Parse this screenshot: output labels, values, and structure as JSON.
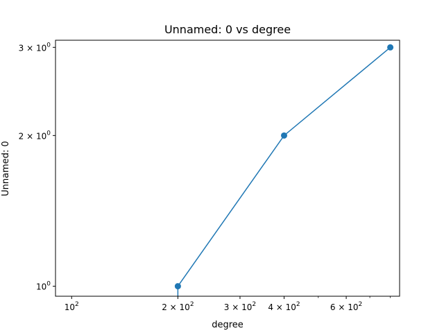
{
  "chart_data": {
    "type": "line",
    "title": "Unnamed: 0 vs degree",
    "xlabel": "degree",
    "ylabel": "Unnamed: 0",
    "xscale": "log",
    "yscale": "log",
    "xlim": [
      90,
      850
    ],
    "ylim": [
      0.955,
      3.1
    ],
    "grid": false,
    "legend": "none",
    "series": [
      {
        "x": [
          200,
          400,
          800
        ],
        "y": [
          1,
          2,
          3
        ],
        "color": "#1f77b4",
        "marker": "circle"
      }
    ],
    "x_ticks": [
      {
        "value": 100,
        "base": "10",
        "exp": "2"
      },
      {
        "value": 200,
        "base": "2 × 10",
        "exp": "2"
      },
      {
        "value": 300,
        "base": "3 × 10",
        "exp": "2"
      },
      {
        "value": 400,
        "base": "4 × 10",
        "exp": "2"
      },
      {
        "value": 600,
        "base": "6 × 10",
        "exp": "2"
      }
    ],
    "y_ticks": [
      {
        "value": 1,
        "base": "10",
        "exp": "0"
      },
      {
        "value": 2,
        "base": "2 × 10",
        "exp": "0"
      },
      {
        "value": 3,
        "base": "3 × 10",
        "exp": "0"
      }
    ],
    "x_minor_ticks": [
      500,
      700,
      800
    ]
  }
}
